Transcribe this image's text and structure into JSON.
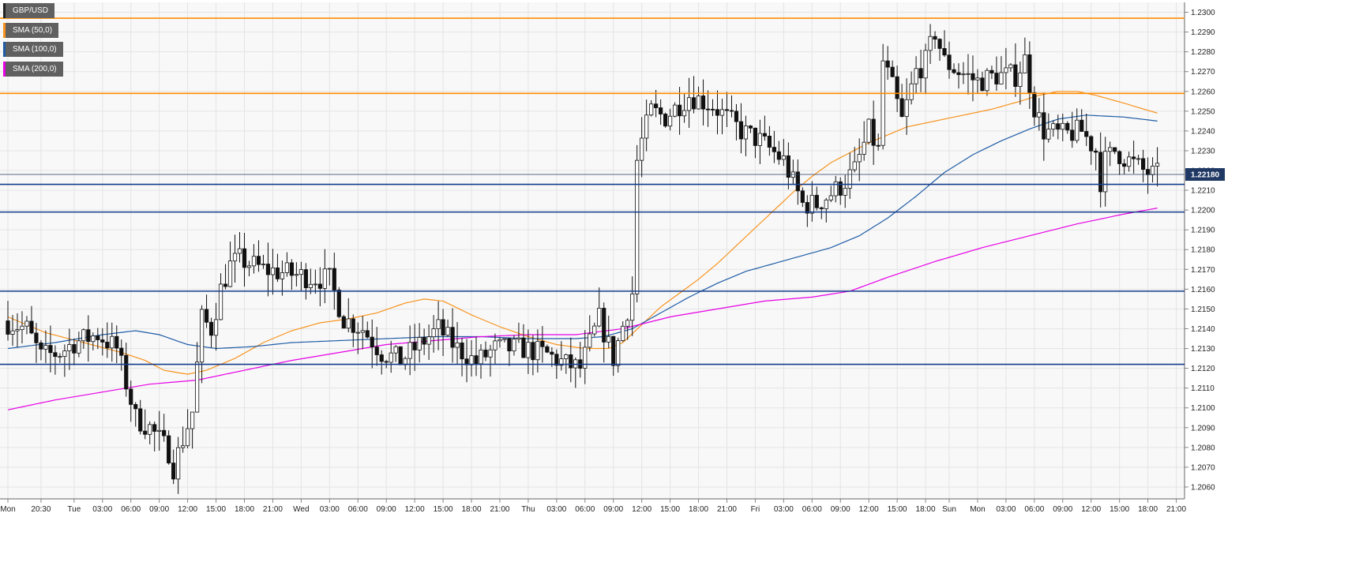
{
  "chart_data": {
    "type": "candlestick",
    "symbol": "GBP/USD",
    "ylim": [
      1.2054,
      1.2305
    ],
    "yticks": [
      "1.2300",
      "1.2290",
      "1.2280",
      "1.2270",
      "1.2260",
      "1.2250",
      "1.2240",
      "1.2230",
      "1.2220",
      "1.2210",
      "1.2200",
      "1.2190",
      "1.2180",
      "1.2170",
      "1.2160",
      "1.2150",
      "1.2140",
      "1.2130",
      "1.2120",
      "1.2110",
      "1.2100",
      "1.2090",
      "1.2080",
      "1.2070",
      "1.2060"
    ],
    "xticks": [
      {
        "label": "Mon",
        "i": 0
      },
      {
        "label": "20:30",
        "i": 7
      },
      {
        "label": "Tue",
        "i": 14
      },
      {
        "label": "03:00",
        "i": 20
      },
      {
        "label": "06:00",
        "i": 26
      },
      {
        "label": "09:00",
        "i": 32
      },
      {
        "label": "12:00",
        "i": 38
      },
      {
        "label": "15:00",
        "i": 44
      },
      {
        "label": "18:00",
        "i": 50
      },
      {
        "label": "21:00",
        "i": 56
      },
      {
        "label": "Wed",
        "i": 62
      },
      {
        "label": "03:00",
        "i": 68
      },
      {
        "label": "06:00",
        "i": 74
      },
      {
        "label": "09:00",
        "i": 80
      },
      {
        "label": "12:00",
        "i": 86
      },
      {
        "label": "15:00",
        "i": 92
      },
      {
        "label": "18:00",
        "i": 98
      },
      {
        "label": "21:00",
        "i": 104
      },
      {
        "label": "Thu",
        "i": 110
      },
      {
        "label": "03:00",
        "i": 116
      },
      {
        "label": "06:00",
        "i": 122
      },
      {
        "label": "09:00",
        "i": 128
      },
      {
        "label": "12:00",
        "i": 134
      },
      {
        "label": "15:00",
        "i": 140
      },
      {
        "label": "18:00",
        "i": 146
      },
      {
        "label": "21:00",
        "i": 152
      },
      {
        "label": "Fri",
        "i": 158
      },
      {
        "label": "03:00",
        "i": 164
      },
      {
        "label": "06:00",
        "i": 170
      },
      {
        "label": "09:00",
        "i": 176
      },
      {
        "label": "12:00",
        "i": 182
      },
      {
        "label": "15:00",
        "i": 188
      },
      {
        "label": "18:00",
        "i": 194
      },
      {
        "label": "Sun",
        "i": 199
      },
      {
        "label": "Mon",
        "i": 205
      },
      {
        "label": "03:00",
        "i": 211
      },
      {
        "label": "06:00",
        "i": 217
      },
      {
        "label": "09:00",
        "i": 223
      },
      {
        "label": "12:00",
        "i": 229
      },
      {
        "label": "15:00",
        "i": 235
      },
      {
        "label": "18:00",
        "i": 241
      },
      {
        "label": "21:00",
        "i": 247
      }
    ],
    "current_price": "1.22180",
    "current_value": 1.2218,
    "resistance_levels": [
      1.2297,
      1.2259
    ],
    "support_levels": [
      1.2213,
      1.2199,
      1.2159,
      1.2122
    ],
    "anchors": [
      [
        0,
        1.2144
      ],
      [
        5,
        1.214
      ],
      [
        8,
        1.2126
      ],
      [
        12,
        1.2128
      ],
      [
        15,
        1.2133
      ],
      [
        20,
        1.2137
      ],
      [
        24,
        1.213
      ],
      [
        28,
        1.2095
      ],
      [
        31,
        1.209
      ],
      [
        35,
        1.2078
      ],
      [
        36,
        1.207
      ],
      [
        40,
        1.2098
      ],
      [
        42,
        1.2145
      ],
      [
        44,
        1.214
      ],
      [
        46,
        1.216
      ],
      [
        48,
        1.2172
      ],
      [
        50,
        1.2175
      ],
      [
        55,
        1.217
      ],
      [
        60,
        1.2168
      ],
      [
        65,
        1.2166
      ],
      [
        69,
        1.2165
      ],
      [
        72,
        1.2145
      ],
      [
        76,
        1.214
      ],
      [
        80,
        1.2128
      ],
      [
        84,
        1.2124
      ],
      [
        88,
        1.2132
      ],
      [
        92,
        1.214
      ],
      [
        96,
        1.213
      ],
      [
        100,
        1.2123
      ],
      [
        104,
        1.213
      ],
      [
        110,
        1.213
      ],
      [
        115,
        1.2127
      ],
      [
        119,
        1.2122
      ],
      [
        122,
        1.212
      ],
      [
        126,
        1.2145
      ],
      [
        129,
        1.2125
      ],
      [
        133,
        1.2158
      ],
      [
        134,
        1.2225
      ],
      [
        135,
        1.2235
      ],
      [
        137,
        1.225
      ],
      [
        140,
        1.2247
      ],
      [
        145,
        1.2258
      ],
      [
        150,
        1.2253
      ],
      [
        156,
        1.224
      ],
      [
        160,
        1.2235
      ],
      [
        165,
        1.2225
      ],
      [
        169,
        1.2203
      ],
      [
        172,
        1.2203
      ],
      [
        177,
        1.2212
      ],
      [
        180,
        1.222
      ],
      [
        183,
        1.224
      ],
      [
        185,
        1.223
      ],
      [
        186,
        1.2275
      ],
      [
        188,
        1.2262
      ],
      [
        190,
        1.2245
      ],
      [
        193,
        1.227
      ],
      [
        195,
        1.2275
      ],
      [
        197,
        1.229
      ],
      [
        199,
        1.2275
      ],
      [
        202,
        1.227
      ],
      [
        206,
        1.2265
      ],
      [
        210,
        1.2268
      ],
      [
        214,
        1.2268
      ],
      [
        216,
        1.2276
      ],
      [
        218,
        1.2252
      ],
      [
        220,
        1.224
      ],
      [
        224,
        1.2238
      ],
      [
        228,
        1.224
      ],
      [
        231,
        1.223
      ],
      [
        232,
        1.2215
      ],
      [
        233,
        1.2225
      ],
      [
        235,
        1.223
      ],
      [
        238,
        1.2225
      ],
      [
        241,
        1.222
      ],
      [
        243,
        1.2218
      ]
    ],
    "series": [
      {
        "name": "SMA (50,0)",
        "color": "#f7931e",
        "points": [
          [
            0,
            1.2146
          ],
          [
            8,
            1.2138
          ],
          [
            16,
            1.2133
          ],
          [
            24,
            1.2128
          ],
          [
            29,
            1.2124
          ],
          [
            33,
            1.2119
          ],
          [
            38,
            1.2117
          ],
          [
            42,
            1.2119
          ],
          [
            48,
            1.2125
          ],
          [
            54,
            1.2133
          ],
          [
            60,
            1.2139
          ],
          [
            66,
            1.2143
          ],
          [
            72,
            1.2145
          ],
          [
            78,
            1.2148
          ],
          [
            84,
            1.2153
          ],
          [
            88,
            1.2155
          ],
          [
            92,
            1.2154
          ],
          [
            98,
            1.2147
          ],
          [
            104,
            1.2141
          ],
          [
            110,
            1.2136
          ],
          [
            116,
            1.2132
          ],
          [
            122,
            1.213
          ],
          [
            127,
            1.213
          ],
          [
            130,
            1.2133
          ],
          [
            134,
            1.2142
          ],
          [
            138,
            1.2151
          ],
          [
            142,
            1.2158
          ],
          [
            146,
            1.2165
          ],
          [
            150,
            1.2173
          ],
          [
            154,
            1.2182
          ],
          [
            158,
            1.2191
          ],
          [
            162,
            1.22
          ],
          [
            166,
            1.2209
          ],
          [
            170,
            1.2217
          ],
          [
            174,
            1.2224
          ],
          [
            178,
            1.2229
          ],
          [
            182,
            1.2234
          ],
          [
            186,
            1.2238
          ],
          [
            190,
            1.2242
          ],
          [
            196,
            1.2245
          ],
          [
            202,
            1.2248
          ],
          [
            208,
            1.2251
          ],
          [
            214,
            1.2255
          ],
          [
            218,
            1.2258
          ],
          [
            222,
            1.226
          ],
          [
            226,
            1.226
          ],
          [
            230,
            1.2258
          ],
          [
            236,
            1.2254
          ],
          [
            243,
            1.2249
          ]
        ]
      },
      {
        "name": "SMA (100,0)",
        "color": "#1f5ca6",
        "points": [
          [
            0,
            1.213
          ],
          [
            10,
            1.2133
          ],
          [
            20,
            1.2137
          ],
          [
            27,
            1.2139
          ],
          [
            32,
            1.2137
          ],
          [
            38,
            1.2132
          ],
          [
            44,
            1.213
          ],
          [
            52,
            1.2131
          ],
          [
            60,
            1.2133
          ],
          [
            70,
            1.2134
          ],
          [
            80,
            1.2135
          ],
          [
            90,
            1.2136
          ],
          [
            100,
            1.2136
          ],
          [
            110,
            1.2135
          ],
          [
            120,
            1.2135
          ],
          [
            126,
            1.2136
          ],
          [
            132,
            1.214
          ],
          [
            138,
            1.2148
          ],
          [
            144,
            1.2156
          ],
          [
            150,
            1.2163
          ],
          [
            156,
            1.2169
          ],
          [
            162,
            1.2173
          ],
          [
            168,
            1.2177
          ],
          [
            174,
            1.2181
          ],
          [
            180,
            1.2187
          ],
          [
            186,
            1.2196
          ],
          [
            192,
            1.2207
          ],
          [
            198,
            1.2219
          ],
          [
            204,
            1.2228
          ],
          [
            210,
            1.2235
          ],
          [
            216,
            1.2241
          ],
          [
            222,
            1.2246
          ],
          [
            228,
            1.2248
          ],
          [
            236,
            1.2247
          ],
          [
            243,
            1.2245
          ]
        ]
      },
      {
        "name": "SMA (200,0)",
        "color": "#e600e6",
        "points": [
          [
            0,
            1.2099
          ],
          [
            10,
            1.2104
          ],
          [
            20,
            1.2108
          ],
          [
            30,
            1.2112
          ],
          [
            40,
            1.2114
          ],
          [
            50,
            1.2119
          ],
          [
            60,
            1.2124
          ],
          [
            70,
            1.2128
          ],
          [
            80,
            1.2132
          ],
          [
            90,
            1.2134
          ],
          [
            100,
            1.2136
          ],
          [
            110,
            1.2137
          ],
          [
            120,
            1.2137
          ],
          [
            130,
            1.214
          ],
          [
            140,
            1.2146
          ],
          [
            150,
            1.215
          ],
          [
            160,
            1.2154
          ],
          [
            170,
            1.2156
          ],
          [
            178,
            1.2159
          ],
          [
            186,
            1.2166
          ],
          [
            196,
            1.2174
          ],
          [
            206,
            1.2181
          ],
          [
            216,
            1.2187
          ],
          [
            226,
            1.2193
          ],
          [
            236,
            1.2198
          ],
          [
            243,
            1.2201
          ]
        ]
      }
    ]
  }
}
